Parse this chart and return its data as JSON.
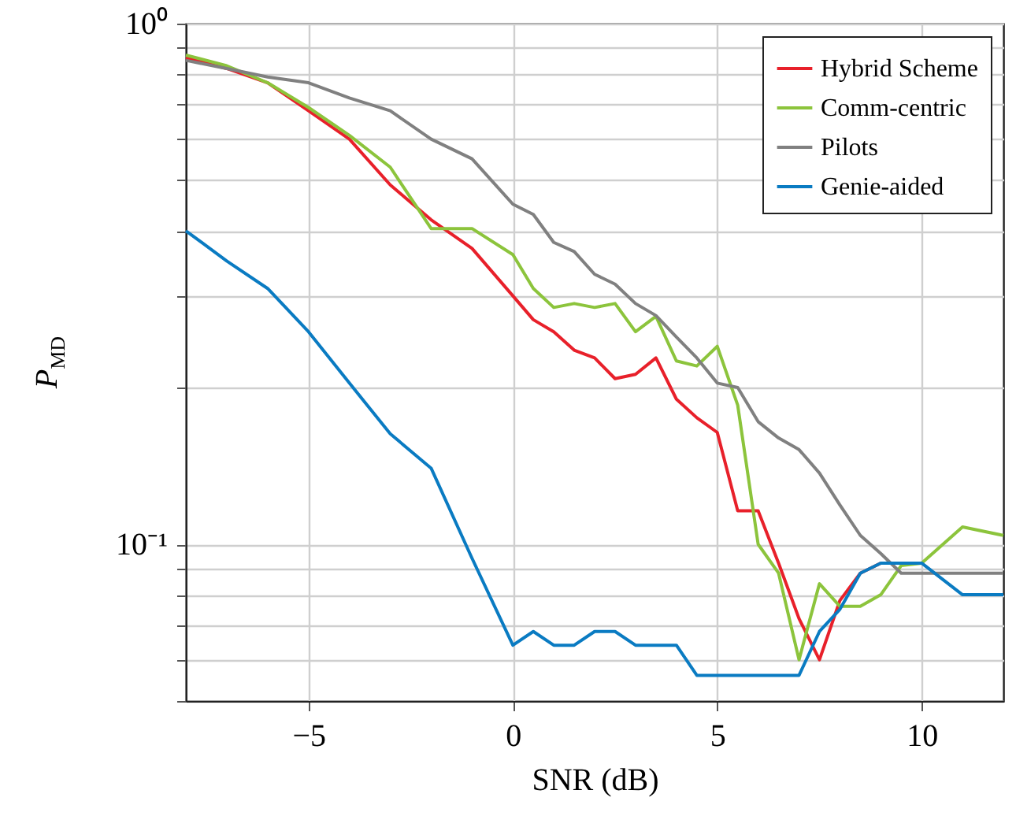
{
  "chart_data": {
    "type": "line",
    "xlabel": "SNR (dB)",
    "ylabel": "P$_{MD}$",
    "log": "y",
    "x": [
      -8,
      -7,
      -6,
      -5,
      -4,
      -3,
      -2,
      -1,
      0,
      0.5,
      1,
      1.5,
      2,
      2.5,
      3,
      3.5,
      4,
      4.5,
      5,
      5.5,
      6,
      6.5,
      7,
      7.5,
      8,
      8.5,
      9,
      9.5,
      10,
      11,
      12
    ],
    "xlim": [
      -8,
      12
    ],
    "xticks": [
      {
        "value": -5,
        "label": "−5"
      },
      0,
      5,
      10
    ],
    "ylim": [
      0.05,
      1
    ],
    "yticks": [
      {
        "value": 0.05,
        "label": null
      },
      {
        "value": 0.06,
        "label": null
      },
      {
        "value": 0.07,
        "label": null
      },
      {
        "value": 0.08,
        "label": null
      },
      {
        "value": 0.09,
        "label": null
      },
      {
        "value": 0.1,
        "label": "10⁻¹"
      },
      {
        "value": 0.2,
        "label": null
      },
      {
        "value": 0.3,
        "label": null
      },
      {
        "value": 0.4,
        "label": null
      },
      {
        "value": 0.5,
        "label": null
      },
      {
        "value": 0.6,
        "label": null
      },
      {
        "value": 0.7,
        "label": null
      },
      {
        "value": 0.8,
        "label": null
      },
      {
        "value": 0.9,
        "label": null
      },
      {
        "value": 1,
        "label": "10⁰"
      }
    ],
    "grid": true,
    "legend": "top right",
    "series": [
      {
        "name": "Hybrid Scheme",
        "color": "#e8202a",
        "values": [
          0.86,
          0.82,
          0.77,
          0.68,
          0.6,
          0.49,
          0.42,
          0.37,
          0.3,
          0.27,
          0.256,
          0.236,
          0.228,
          0.208,
          0.212,
          0.228,
          0.19,
          0.175,
          0.164,
          0.116,
          0.116,
          0.092,
          0.072,
          0.06,
          0.078,
          0.088,
          0.092,
          null,
          null,
          null,
          null
        ]
      },
      {
        "name": "Comm-centric",
        "color": "#8cc43c",
        "values": [
          0.87,
          0.83,
          0.77,
          0.69,
          0.61,
          0.53,
          0.404,
          0.404,
          0.36,
          0.31,
          0.285,
          0.29,
          0.285,
          0.29,
          0.256,
          0.274,
          0.225,
          0.22,
          0.24,
          0.185,
          0.1,
          0.088,
          0.06,
          0.084,
          0.076,
          0.076,
          0.08,
          0.091,
          0.092,
          0.108,
          0.104
        ]
      },
      {
        "name": "Pilots",
        "color": "#808080",
        "values": [
          0.85,
          0.82,
          0.79,
          0.77,
          0.72,
          0.68,
          0.6,
          0.55,
          0.45,
          0.43,
          0.38,
          0.365,
          0.33,
          0.316,
          0.29,
          0.275,
          0.25,
          0.228,
          0.204,
          0.2,
          0.172,
          0.16,
          0.152,
          0.137,
          0.119,
          0.104,
          0.096,
          0.088,
          0.088,
          0.088,
          0.088
        ]
      },
      {
        "name": "Genie-aided",
        "color": "#0a7bc2",
        "values": [
          0.4,
          0.35,
          0.31,
          0.256,
          0.204,
          0.163,
          0.14,
          0.094,
          0.064,
          0.068,
          0.064,
          0.064,
          0.068,
          0.068,
          0.064,
          0.064,
          0.064,
          0.056,
          0.056,
          0.056,
          0.056,
          0.056,
          0.056,
          0.068,
          0.075,
          0.088,
          0.092,
          0.092,
          0.092,
          0.08,
          0.08
        ]
      }
    ]
  }
}
